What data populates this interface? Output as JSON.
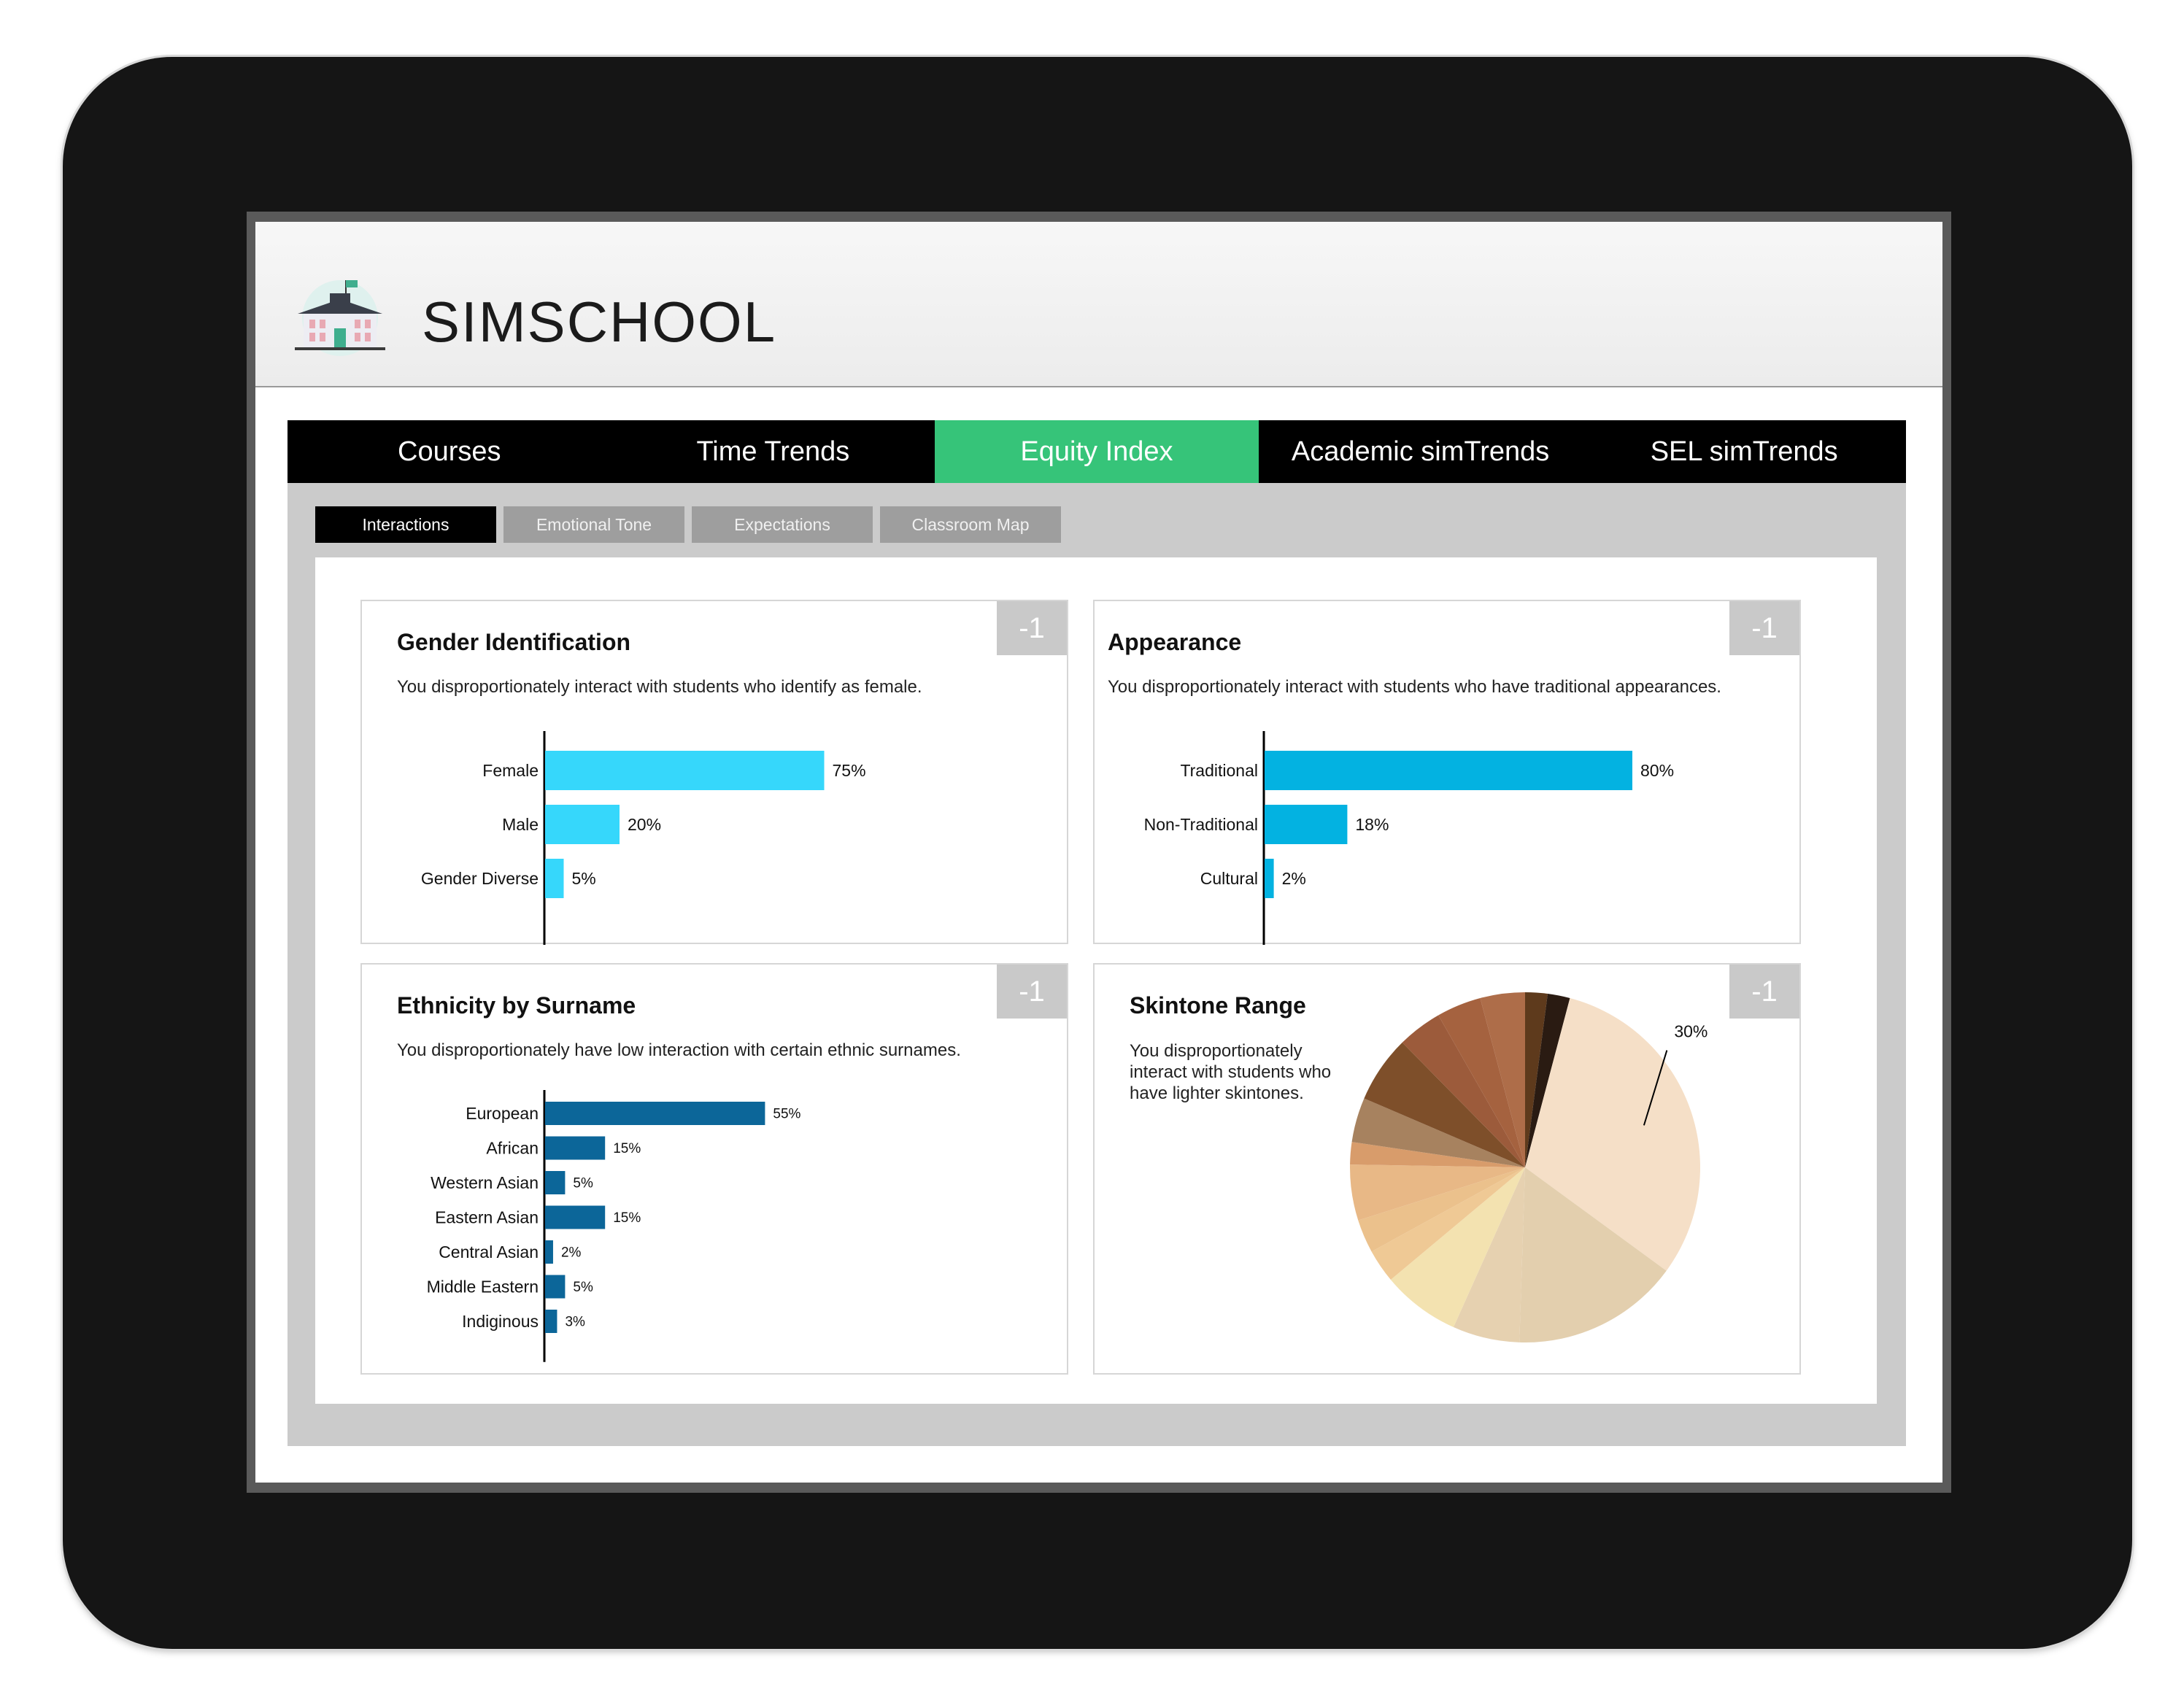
{
  "app": {
    "logo_text": "SIMSCHOOL"
  },
  "nav": {
    "items": [
      {
        "label": "Courses",
        "active": false
      },
      {
        "label": "Time Trends",
        "active": false
      },
      {
        "label": "Equity Index",
        "active": true
      },
      {
        "label": "Academic simTrends",
        "active": false
      },
      {
        "label": "SEL simTrends",
        "active": false
      }
    ]
  },
  "subtabs": [
    {
      "label": "Interactions",
      "active": true
    },
    {
      "label": "Emotional Tone",
      "active": false
    },
    {
      "label": "Expectations",
      "active": false
    },
    {
      "label": "Classroom Map",
      "active": false
    }
  ],
  "cards": {
    "gender": {
      "badge": "-1",
      "title": "Gender Identification",
      "description": "You disproportionately interact with students who identify as female."
    },
    "appearance": {
      "badge": "-1",
      "title": "Appearance",
      "description": "You disproportionately interact with students who have traditional appearances."
    },
    "ethnicity": {
      "badge": "-1",
      "title": "Ethnicity by Surname",
      "description": "You disproportionately have low interaction with certain ethnic surnames."
    },
    "skintone": {
      "badge": "-1",
      "title": "Skintone Range",
      "description": "You disproportionately interact with students who have lighter skintones."
    }
  },
  "colors": {
    "active_nav": "#36c479",
    "gender_bar": "#36d7fb",
    "appearance_bar": "#03b2e1",
    "ethnicity_bar": "#0c6699"
  },
  "chart_data": [
    {
      "type": "bar",
      "orientation": "horizontal",
      "categories": [
        "Female",
        "Male",
        "Gender Diverse"
      ],
      "values": [
        75,
        20,
        5
      ],
      "value_labels": [
        "75%",
        "20%",
        "5%"
      ],
      "xlim": [
        0,
        100
      ]
    },
    {
      "type": "bar",
      "orientation": "horizontal",
      "categories": [
        "Traditional",
        "Non-Traditional",
        "Cultural"
      ],
      "values": [
        80,
        18,
        2
      ],
      "value_labels": [
        "80%",
        "18%",
        "2%"
      ],
      "xlim": [
        0,
        100
      ]
    },
    {
      "type": "bar",
      "orientation": "horizontal",
      "categories": [
        "European",
        "African",
        "Western Asian",
        "Eastern Asian",
        "Central Asian",
        "Middle Eastern",
        "Indiginous"
      ],
      "values": [
        55,
        15,
        5,
        15,
        2,
        5,
        3
      ],
      "value_labels": [
        "55%",
        "15%",
        "5%",
        "15%",
        "2%",
        "5%",
        "3%"
      ],
      "xlim": [
        0,
        100
      ]
    },
    {
      "type": "pie",
      "slices": [
        {
          "value": 2,
          "color": "#5e3a1c"
        },
        {
          "value": 2,
          "color": "#2a1b12"
        },
        {
          "value": 30,
          "color": "#f5dfc7",
          "label": "30%"
        },
        {
          "value": 15,
          "color": "#e3cfae"
        },
        {
          "value": 6,
          "color": "#e6d1b0"
        },
        {
          "value": 7,
          "color": "#f3e2b0"
        },
        {
          "value": 3,
          "color": "#efc995"
        },
        {
          "value": 3,
          "color": "#ebc18c"
        },
        {
          "value": 5,
          "color": "#e8b886"
        },
        {
          "value": 2,
          "color": "#d89c6b"
        },
        {
          "value": 4,
          "color": "#a7825f"
        },
        {
          "value": 6,
          "color": "#7e4f2a"
        },
        {
          "value": 4,
          "color": "#9c5b3b"
        },
        {
          "value": 4,
          "color": "#a5623f"
        },
        {
          "value": 4,
          "color": "#ae6d49"
        }
      ]
    }
  ]
}
